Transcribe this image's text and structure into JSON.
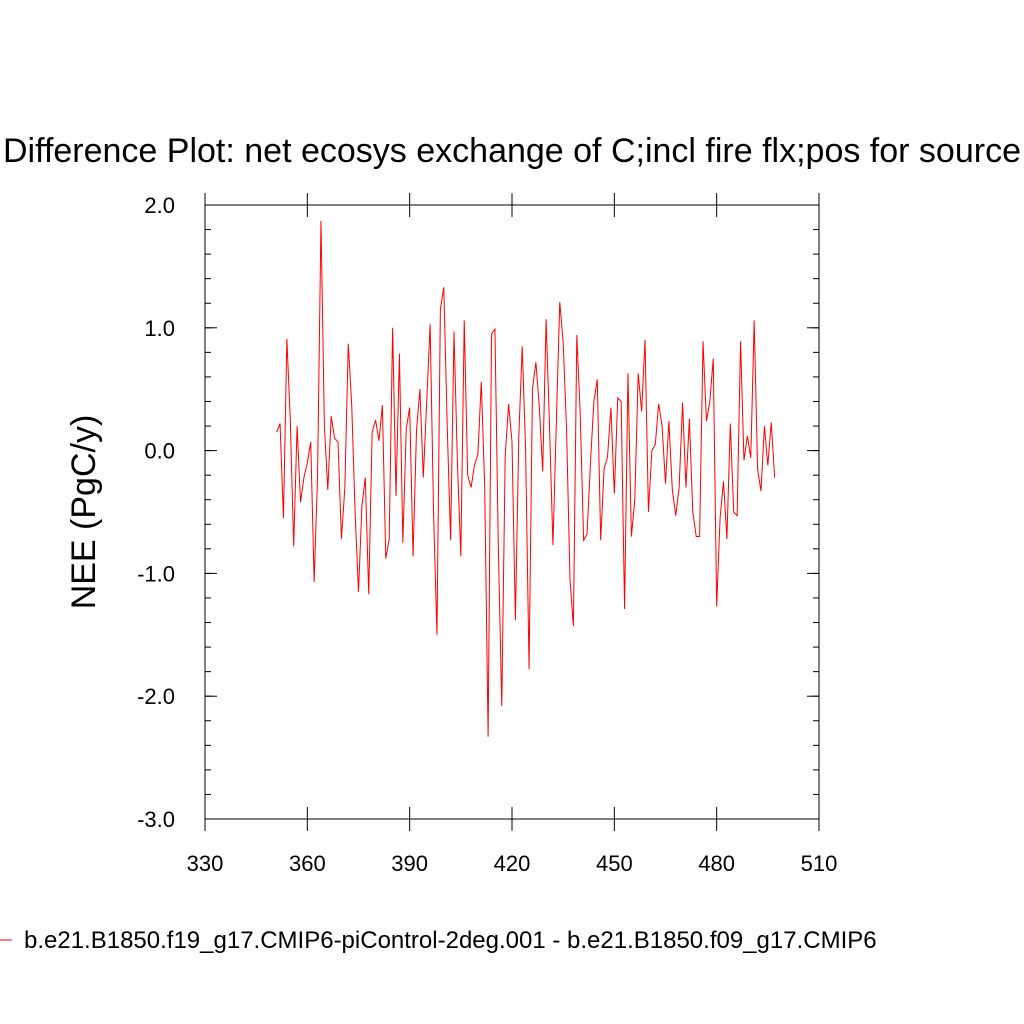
{
  "chart_data": {
    "type": "line",
    "title": "Difference Plot: net ecosys exchange of C;incl fire flx;pos for source",
    "xlabel": "",
    "ylabel": "NEE  (PgC/y)",
    "xlim": [
      330,
      510
    ],
    "ylim": [
      -3.0,
      2.0
    ],
    "x_ticks": [
      "330",
      "360",
      "390",
      "420",
      "450",
      "480",
      "510"
    ],
    "y_ticks": [
      "2.0",
      "1.0",
      "0.0",
      "-1.0",
      "-2.0",
      "-3.0"
    ],
    "grid": false,
    "legend_position": "bottom",
    "series": [
      {
        "name": "b.e21.B1850.f19_g17.CMIP6-piControl-2deg.001 - b.e21.B1850.f09_g17.CMIP6",
        "color": "#ff0000",
        "x_start": 351,
        "x_step": 1,
        "values": [
          0.15,
          0.22,
          -0.55,
          0.91,
          0.25,
          -0.78,
          0.2,
          -0.42,
          -0.22,
          -0.1,
          0.07,
          -1.07,
          -0.2,
          1.87,
          0.2,
          -0.32,
          0.28,
          0.1,
          0.07,
          -0.72,
          -0.3,
          0.87,
          0.38,
          -0.5,
          -1.15,
          -0.45,
          -0.22,
          -1.17,
          0.15,
          0.25,
          0.08,
          0.37,
          -0.88,
          -0.72,
          1.0,
          -0.37,
          0.79,
          -0.75,
          0.18,
          0.35,
          -0.86,
          0.16,
          0.5,
          -0.22,
          0.4,
          1.03,
          -0.5,
          -1.5,
          1.15,
          1.33,
          0.21,
          -0.73,
          0.97,
          -0.1,
          -0.86,
          1.06,
          -0.2,
          -0.3,
          -0.12,
          -0.03,
          0.56,
          -0.3,
          -2.33,
          0.95,
          0.99,
          -0.8,
          -2.08,
          -0.05,
          0.38,
          0.07,
          -1.38,
          0.12,
          0.85,
          0.0,
          -1.78,
          0.5,
          0.72,
          0.36,
          -0.17,
          1.07,
          0.2,
          -0.77,
          0.23,
          1.21,
          0.88,
          0.17,
          -1.05,
          -1.43,
          0.94,
          0.3,
          -0.73,
          -0.68,
          -0.1,
          0.4,
          0.58,
          -0.73,
          -0.15,
          -0.05,
          0.35,
          -0.35,
          0.43,
          0.4,
          -1.29,
          0.63,
          -0.7,
          -0.4,
          0.63,
          0.32,
          0.9,
          -0.5,
          0.0,
          0.05,
          0.38,
          0.2,
          -0.27,
          0.24,
          -0.32,
          -0.53,
          -0.3,
          0.39,
          -0.3,
          0.26,
          -0.5,
          -0.7,
          -0.7,
          0.89,
          0.24,
          0.4,
          0.75,
          -1.27,
          -0.55,
          -0.25,
          -0.72,
          0.22,
          -0.5,
          -0.53,
          0.89,
          -0.08,
          0.12,
          -0.06,
          1.06,
          -0.15,
          -0.33,
          0.2,
          -0.12,
          0.23,
          -0.22
        ]
      }
    ]
  }
}
